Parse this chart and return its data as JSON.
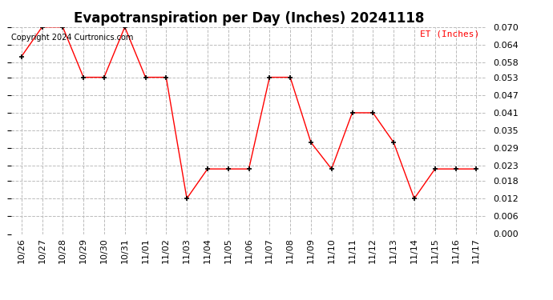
{
  "title": "Evapotranspiration per Day (Inches) 20241118",
  "copyright": "Copyright 2024 Curtronics.com",
  "legend_label": "ET (Inches)",
  "dates": [
    "10/26",
    "10/27",
    "10/28",
    "10/29",
    "10/30",
    "10/31",
    "11/01",
    "11/02",
    "11/03",
    "11/04",
    "11/05",
    "11/06",
    "11/07",
    "11/08",
    "11/09",
    "11/10",
    "11/11",
    "11/12",
    "11/13",
    "11/14",
    "11/15",
    "11/16",
    "11/17"
  ],
  "values": [
    0.06,
    0.07,
    0.07,
    0.053,
    0.053,
    0.07,
    0.053,
    0.053,
    0.012,
    0.022,
    0.022,
    0.022,
    0.053,
    0.053,
    0.031,
    0.022,
    0.041,
    0.041,
    0.031,
    0.012,
    0.022,
    0.022,
    0.022
  ],
  "line_color": "red",
  "marker_color": "black",
  "marker_style": "+",
  "ylim": [
    0.0,
    0.07
  ],
  "yticks": [
    0.0,
    0.006,
    0.012,
    0.018,
    0.023,
    0.029,
    0.035,
    0.041,
    0.047,
    0.053,
    0.058,
    0.064,
    0.07
  ],
  "grid_color": "#bbbbbb",
  "grid_style": "--",
  "background_color": "#ffffff",
  "title_fontsize": 12,
  "axis_fontsize": 8,
  "legend_color": "red",
  "copyright_color": "black",
  "copyright_fontsize": 7
}
